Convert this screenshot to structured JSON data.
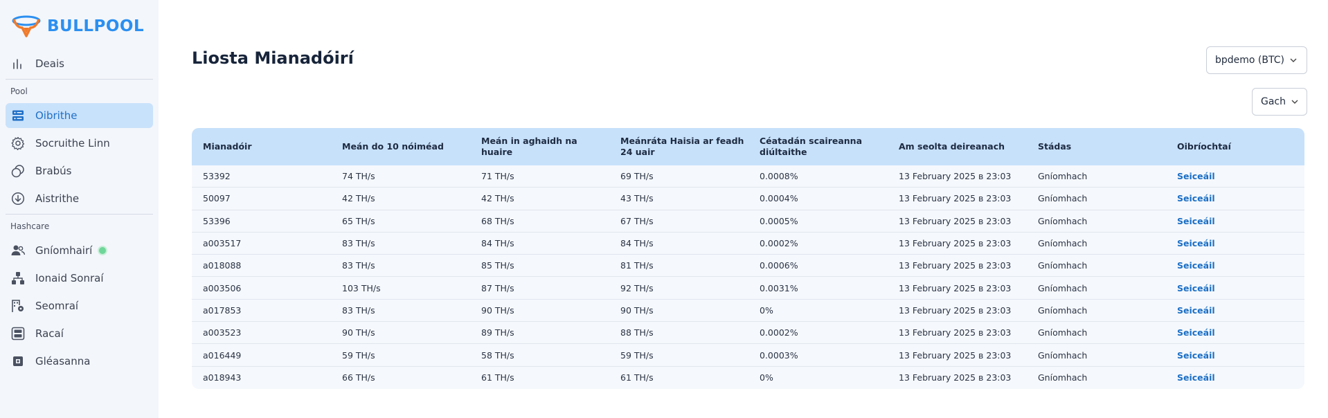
{
  "brand": {
    "name": "BULLPOOL",
    "color": "#2b8ff0"
  },
  "sidebar": {
    "top_item": {
      "label": "Deais",
      "icon": "bar-chart-icon"
    },
    "pool_section": "Pool",
    "pool_items": [
      {
        "label": "Oibrithe",
        "icon": "servers-icon",
        "active": true
      },
      {
        "label": "Socruithe Linn",
        "icon": "gear-icon"
      },
      {
        "label": "Brabús",
        "icon": "coins-icon"
      },
      {
        "label": "Aistrithe",
        "icon": "download-circle-icon"
      }
    ],
    "hashcare_section": "Hashcare",
    "hashcare_items": [
      {
        "label": "Gníomhairí",
        "icon": "users-icon",
        "status": "online"
      },
      {
        "label": "Ionaid Sonraí",
        "icon": "hierarchy-icon"
      },
      {
        "label": "Seomraí",
        "icon": "room-settings-icon"
      },
      {
        "label": "Racaí",
        "icon": "rack-icon"
      },
      {
        "label": "Gléasanna",
        "icon": "chip-icon"
      }
    ]
  },
  "main": {
    "title": "Liosta Mianadóirí",
    "account_select": "bpdemo (BTC)",
    "filter_select": "Gach"
  },
  "table": {
    "headers": [
      "Mianadóir",
      "Meán do 10 nóiméad",
      "Meán in aghaidh na huaire",
      "Meánráta Haisia ar feadh 24 uair",
      "Céatadán scaireanna diúltaithe",
      "Am seolta deireanach",
      "Stádas",
      "Oibríochtaí"
    ],
    "rows": [
      [
        "53392",
        "74 TH/s",
        "71 TH/s",
        "69 TH/s",
        "0.0008%",
        "13 February 2025 в 23:03",
        "Gníomhach",
        "Seiceáil"
      ],
      [
        "50097",
        "42 TH/s",
        "42 TH/s",
        "43 TH/s",
        "0.0004%",
        "13 February 2025 в 23:03",
        "Gníomhach",
        "Seiceáil"
      ],
      [
        "53396",
        "65 TH/s",
        "68 TH/s",
        "67 TH/s",
        "0.0005%",
        "13 February 2025 в 23:03",
        "Gníomhach",
        "Seiceáil"
      ],
      [
        "a003517",
        "83 TH/s",
        "84 TH/s",
        "84 TH/s",
        "0.0002%",
        "13 February 2025 в 23:03",
        "Gníomhach",
        "Seiceáil"
      ],
      [
        "a018088",
        "83 TH/s",
        "85 TH/s",
        "81 TH/s",
        "0.0006%",
        "13 February 2025 в 23:03",
        "Gníomhach",
        "Seiceáil"
      ],
      [
        "a003506",
        "103 TH/s",
        "87 TH/s",
        "92 TH/s",
        "0.0031%",
        "13 February 2025 в 23:03",
        "Gníomhach",
        "Seiceáil"
      ],
      [
        "a017853",
        "83 TH/s",
        "90 TH/s",
        "90 TH/s",
        "0%",
        "13 February 2025 в 23:03",
        "Gníomhach",
        "Seiceáil"
      ],
      [
        "a003523",
        "90 TH/s",
        "89 TH/s",
        "88 TH/s",
        "0.0002%",
        "13 February 2025 в 23:03",
        "Gníomhach",
        "Seiceáil"
      ],
      [
        "a016449",
        "59 TH/s",
        "58 TH/s",
        "59 TH/s",
        "0.0003%",
        "13 February 2025 в 23:03",
        "Gníomhach",
        "Seiceáil"
      ],
      [
        "a018943",
        "66 TH/s",
        "61 TH/s",
        "61 TH/s",
        "0%",
        "13 February 2025 в 23:03",
        "Gníomhach",
        "Seiceáil"
      ]
    ]
  }
}
